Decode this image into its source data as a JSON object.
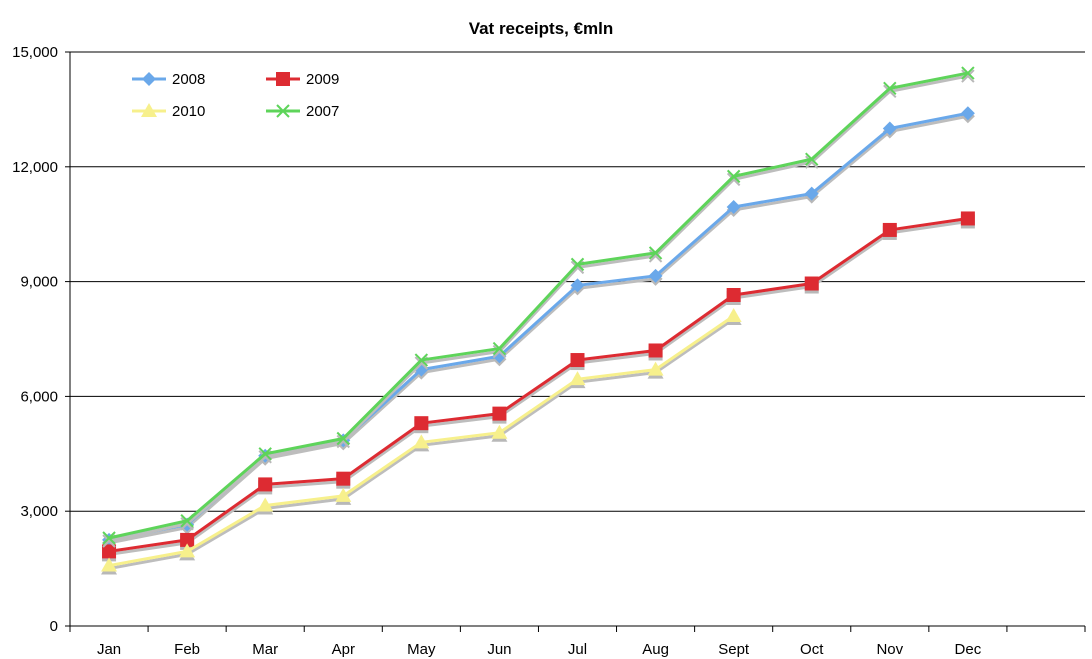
{
  "chart_data": {
    "type": "line",
    "title": "Vat receipts, €mln",
    "xlabel": "",
    "ylabel": "",
    "categories": [
      "Jan",
      "Feb",
      "Mar",
      "Apr",
      "May",
      "Jun",
      "Jul",
      "Aug",
      "Sept",
      "Oct",
      "Nov",
      "Dec"
    ],
    "ylim": [
      0,
      15000
    ],
    "yticks": [
      0,
      3000,
      6000,
      9000,
      12000,
      15000
    ],
    "ytick_labels": [
      "0",
      "3,000",
      "6,000",
      "9,000",
      "12,000",
      "15,000"
    ],
    "grid": true,
    "legend_position": "top-left",
    "series": [
      {
        "name": "2008",
        "color": "#6aa8ea",
        "marker": "diamond",
        "values": [
          2250,
          2650,
          4450,
          4850,
          6700,
          7050,
          8900,
          9150,
          10950,
          11300,
          13000,
          13400
        ]
      },
      {
        "name": "2009",
        "color": "#dd2b32",
        "marker": "square",
        "values": [
          1950,
          2250,
          3700,
          3850,
          5300,
          5550,
          6950,
          7200,
          8650,
          8950,
          10350,
          10650
        ]
      },
      {
        "name": "2010",
        "color": "#f7f08c",
        "marker": "triangle",
        "values": [
          1580,
          1950,
          3150,
          3400,
          4800,
          5050,
          6450,
          6700,
          8100,
          null,
          null,
          null
        ]
      },
      {
        "name": "2007",
        "color": "#5ed45a",
        "marker": "x",
        "values": [
          2300,
          2750,
          4500,
          4900,
          6950,
          7250,
          9450,
          9750,
          11750,
          12200,
          14050,
          14450
        ]
      }
    ]
  }
}
